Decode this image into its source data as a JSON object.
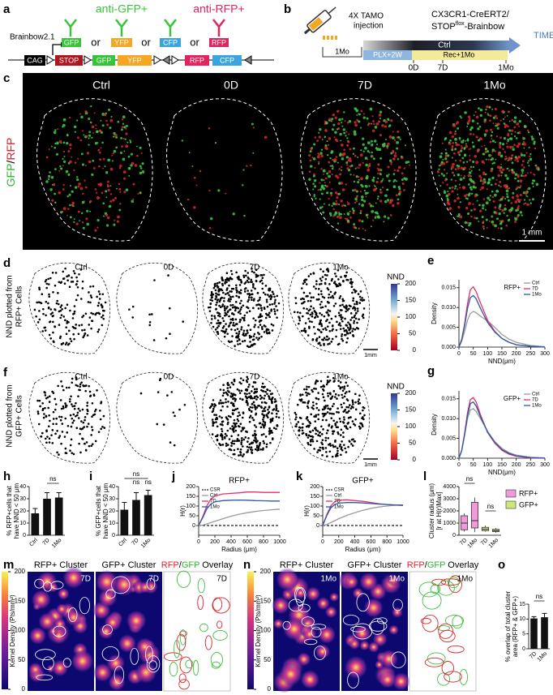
{
  "panels": [
    "a",
    "b",
    "c",
    "d",
    "e",
    "f",
    "g",
    "h",
    "i",
    "j",
    "k",
    "l",
    "m",
    "n",
    "o"
  ],
  "a": {
    "anti_gfp": "anti-GFP+",
    "anti_rfp": "anti-RFP+",
    "brainbow": "Brainbow2.1",
    "proteins": [
      "GFP",
      "YFP",
      "CFP",
      "RFP"
    ],
    "or": [
      "or",
      "or",
      "or"
    ],
    "cassette": [
      "CAG",
      "STOP",
      "GFP",
      "YFP",
      "RFP",
      "CFP"
    ]
  },
  "b": {
    "injection": [
      "4X TAMO",
      "injection"
    ],
    "mouse_line": [
      "CX3CR1-CreERT2/",
      "STOP",
      "flox",
      "-Brainbow"
    ],
    "time": "TIME",
    "ctrl": "Ctrl",
    "plx": "PLX+2W",
    "rec": "Rec+1Mo",
    "baseline": "1Mo",
    "timepoints": [
      "0D",
      "7D",
      "1Mo"
    ]
  },
  "c": {
    "conditions": [
      "Ctrl",
      "0D",
      "7D",
      "1Mo"
    ],
    "stain": [
      "GFP",
      "/",
      "RFP"
    ],
    "scale_bar": "1 mm"
  },
  "d": {
    "ylabel": [
      "NND plotted from",
      "RFP+ Cells"
    ],
    "conditions": [
      "Ctrl",
      "0D",
      "7D",
      "1Mo"
    ],
    "scale_bar": "1mm",
    "colorbar_title": "NND",
    "colorbar_lim": [
      0,
      200
    ],
    "colorbar_ticks": [
      0,
      50,
      100,
      150,
      200
    ]
  },
  "f": {
    "ylabel": [
      "NND plotted from",
      "GFP+ Cells"
    ],
    "conditions": [
      "Ctrl",
      "0D",
      "7D",
      "1Mo"
    ],
    "scale_bar": "1mm",
    "colorbar_title": "NND",
    "colorbar_lim": [
      0,
      200
    ],
    "colorbar_ticks": [
      0,
      50,
      100,
      150,
      200
    ]
  },
  "m": {
    "titles": [
      "RFP+ Cluster",
      "GFP+ Cluster"
    ],
    "overlay": [
      "RFP",
      "/",
      "GFP",
      " Overlay"
    ],
    "timepoint": [
      "7D",
      "7D",
      "7D"
    ],
    "colorbar_label": "Kernel Density (Pts/mm²)",
    "colorbar_lim": [
      0,
      200
    ],
    "colorbar_ticks": [
      0,
      50,
      100,
      150,
      200
    ]
  },
  "n": {
    "titles": [
      "RFP+ Cluster",
      "GFP+ Cluster"
    ],
    "overlay": [
      "RFP",
      "/",
      "GFP",
      " Overlay"
    ],
    "timepoint": [
      "1Mo",
      "1Mo",
      "1Mo"
    ],
    "colorbar_label": "Kernel Density (Pts/mm²)",
    "colorbar_lim": [
      0,
      200
    ],
    "colorbar_ticks": [
      0,
      50,
      100,
      150,
      200
    ]
  },
  "chart_data": [
    {
      "type": "line",
      "title": "RFP+",
      "ylabel": "Density",
      "xlabel": "NND(μm)",
      "legend": "upper right",
      "x": [
        0,
        10,
        20,
        30,
        40,
        50,
        60,
        75,
        100,
        125,
        150,
        175,
        200,
        250,
        300
      ],
      "series": [
        {
          "name": "Ctrl",
          "color": "#9a9a9a",
          "values": [
            0,
            0.0015,
            0.004,
            0.0068,
            0.0085,
            0.009,
            0.0087,
            0.0078,
            0.0066,
            0.005,
            0.0032,
            0.002,
            0.0012,
            0.0004,
            0.0001
          ]
        },
        {
          "name": "7D",
          "color": "#e3306a",
          "values": [
            0,
            0.002,
            0.006,
            0.011,
            0.0145,
            0.0152,
            0.014,
            0.0112,
            0.0068,
            0.004,
            0.0022,
            0.0012,
            0.0006,
            0.0002,
            0
          ]
        },
        {
          "name": "1Mo",
          "color": "#2a5aa8",
          "values": [
            0,
            0.002,
            0.0055,
            0.0098,
            0.0125,
            0.013,
            0.0122,
            0.0098,
            0.0062,
            0.0038,
            0.0022,
            0.0012,
            0.0006,
            0.0002,
            0
          ]
        }
      ],
      "xlim": [
        0,
        300
      ],
      "xticks": [
        0,
        50,
        100,
        150,
        200,
        250,
        300
      ],
      "ylim": [
        0,
        0.017
      ],
      "yticks": [
        {
          "value": 0,
          "label": "0.000"
        },
        {
          "value": 0.005,
          "label": "0.005"
        },
        {
          "value": 0.01,
          "label": "0.010"
        },
        {
          "value": 0.015,
          "label": "0.015"
        }
      ]
    },
    {
      "type": "line",
      "title": "GFP+",
      "ylabel": "Density",
      "xlabel": "NND(μm)",
      "legend": "upper right",
      "x": [
        0,
        10,
        20,
        30,
        40,
        50,
        60,
        75,
        100,
        125,
        150,
        175,
        200,
        250,
        300
      ],
      "series": [
        {
          "name": "Ctrl",
          "color": "#9a9a9a",
          "values": [
            0,
            0.002,
            0.006,
            0.01,
            0.0122,
            0.0125,
            0.0118,
            0.01,
            0.0068,
            0.0042,
            0.0025,
            0.0014,
            0.0008,
            0.0002,
            0.0001
          ]
        },
        {
          "name": "7D",
          "color": "#e3306a",
          "values": [
            0,
            0.002,
            0.0065,
            0.0115,
            0.0148,
            0.0153,
            0.0142,
            0.011,
            0.0065,
            0.0038,
            0.002,
            0.001,
            0.0005,
            0.0001,
            0
          ]
        },
        {
          "name": "1Mo",
          "color": "#2a5aa8",
          "values": [
            0,
            0.002,
            0.006,
            0.0108,
            0.0138,
            0.0142,
            0.0132,
            0.0105,
            0.0066,
            0.004,
            0.0022,
            0.0012,
            0.0006,
            0.0002,
            0
          ]
        }
      ],
      "xlim": [
        0,
        300
      ],
      "xticks": [
        0,
        50,
        100,
        150,
        200,
        250,
        300
      ],
      "ylim": [
        0,
        0.017
      ],
      "yticks": [
        {
          "value": 0,
          "label": "0.000"
        },
        {
          "value": 0.005,
          "label": "0.005"
        },
        {
          "value": 0.01,
          "label": "0.010"
        },
        {
          "value": 0.015,
          "label": "0.015"
        }
      ]
    },
    {
      "type": "bar",
      "ylabel": [
        "% RFP+cells that",
        "have NND < 50 µm"
      ],
      "categories": [
        "Ctrl",
        "7D",
        "1Mo"
      ],
      "values": [
        18,
        30,
        31
      ],
      "errors": [
        4,
        5,
        4
      ],
      "color": "#111111",
      "ylim": [
        0,
        40
      ],
      "yticks": [
        0,
        10,
        20,
        30,
        40
      ],
      "annotations": [
        "ns"
      ]
    },
    {
      "type": "bar",
      "ylabel": [
        "% GFP+cells that",
        "have NND < 50 µm"
      ],
      "categories": [
        "Ctrl",
        "7D",
        "1Mo"
      ],
      "values": [
        21,
        29,
        33
      ],
      "errors": [
        6,
        6,
        4
      ],
      "color": "#111111",
      "ylim": [
        0,
        40
      ],
      "yticks": [
        0,
        10,
        20,
        30,
        40
      ],
      "annotations": [
        "ns",
        "ns",
        "ns"
      ]
    },
    {
      "type": "line",
      "title": "RFP+",
      "ylabel": "H(r)",
      "xlabel": "Radius (μm)",
      "legend": "upper left",
      "x": [
        0,
        50,
        100,
        150,
        200,
        300,
        400,
        500,
        600,
        700,
        800,
        900,
        1000
      ],
      "series": [
        {
          "name": "CSR",
          "color": "#222222",
          "dash": true,
          "values": [
            0,
            0,
            0,
            0,
            0,
            0,
            0,
            0,
            0,
            0,
            0,
            0,
            0
          ]
        },
        {
          "name": "Ctrl",
          "color": "#9a9a9a",
          "values": [
            0,
            2,
            8,
            15,
            22,
            35,
            48,
            58,
            66,
            72,
            77,
            81,
            84
          ]
        },
        {
          "name": "7D",
          "color": "#e3306a",
          "values": [
            0,
            45,
            100,
            135,
            152,
            162,
            165,
            168,
            172,
            172,
            170,
            170,
            170
          ]
        },
        {
          "name": "1Mo",
          "color": "#2a5aa8",
          "values": [
            0,
            40,
            85,
            110,
            122,
            128,
            130,
            131,
            130,
            128,
            127,
            126,
            126
          ]
        }
      ],
      "xlim": [
        0,
        1000
      ],
      "xticks": [
        0,
        200,
        400,
        600,
        800,
        1000
      ],
      "ylim": [
        -50,
        200
      ],
      "yticks": [
        0,
        50,
        100,
        150,
        200
      ]
    },
    {
      "type": "line",
      "title": "GFP+",
      "ylabel": "H(r)",
      "xlabel": "Radius (μm)",
      "legend": "upper left",
      "x": [
        0,
        50,
        100,
        150,
        200,
        300,
        400,
        500,
        600,
        700,
        800,
        900,
        1000
      ],
      "series": [
        {
          "name": "CSR",
          "color": "#222222",
          "dash": true,
          "values": [
            0,
            0,
            0,
            0,
            0,
            0,
            0,
            0,
            0,
            0,
            0,
            0,
            0
          ]
        },
        {
          "name": "Ctrl",
          "color": "#9a9a9a",
          "values": [
            0,
            5,
            15,
            25,
            35,
            52,
            66,
            78,
            88,
            95,
            100,
            104,
            106
          ]
        },
        {
          "name": "7D",
          "color": "#e3306a",
          "values": [
            0,
            55,
            100,
            122,
            130,
            132,
            128,
            124,
            118,
            112,
            108,
            105,
            103
          ]
        },
        {
          "name": "1Mo",
          "color": "#2a5aa8",
          "values": [
            0,
            50,
            90,
            108,
            115,
            118,
            118,
            116,
            113,
            110,
            108,
            106,
            105
          ]
        }
      ],
      "xlim": [
        0,
        1000
      ],
      "xticks": [
        0,
        200,
        400,
        600,
        800,
        1000
      ],
      "ylim": [
        -50,
        200
      ],
      "yticks": [
        0,
        50,
        100,
        150,
        200
      ]
    },
    {
      "type": "box",
      "ylabel": [
        "Cluster radius (μm)",
        "[r at H(r)Max]"
      ],
      "ylim": [
        0,
        4000
      ],
      "yticks": [
        0,
        1000,
        2000,
        3000,
        4000
      ],
      "groups": [
        {
          "name": "RFP+",
          "color": "#f29ad8",
          "categories": [
            "7D",
            "1Mo"
          ],
          "boxes": [
            {
              "min": 300,
              "q1": 450,
              "median": 1000,
              "q3": 1600,
              "max": 1800
            },
            {
              "min": 250,
              "q1": 600,
              "median": 1200,
              "q3": 2700,
              "max": 3100
            }
          ]
        },
        {
          "name": "GFP+",
          "color": "#cde87a",
          "categories": [
            "7D",
            "1Mo"
          ],
          "boxes": [
            {
              "min": 300,
              "q1": 380,
              "median": 500,
              "q3": 650,
              "max": 800
            },
            {
              "min": 200,
              "q1": 300,
              "median": 380,
              "q3": 480,
              "max": 600
            }
          ]
        }
      ],
      "annotations": [
        "ns",
        "ns"
      ]
    },
    {
      "type": "bar",
      "ylabel": [
        "% overlap of total cluster",
        "area (RFP+ & GFP+)"
      ],
      "categories": [
        "7D",
        "1Mo"
      ],
      "values": [
        10.2,
        10.6
      ],
      "errors": [
        0.6,
        1.3
      ],
      "color": "#111111",
      "ylim": [
        0,
        15
      ],
      "yticks": [
        0,
        5,
        10,
        15
      ],
      "annotations": [
        "ns"
      ]
    }
  ]
}
